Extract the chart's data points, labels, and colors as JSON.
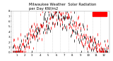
{
  "title": "Milwaukee Weather  Solar Radiation\nper Day KW/m2",
  "ylim": [
    0,
    8
  ],
  "background_color": "#ffffff",
  "grid_color": "#cccccc",
  "dot_color_primary": "#ff0000",
  "dot_color_secondary": "#000000",
  "legend_color": "#ff0000",
  "num_points": 365,
  "title_fontsize": 3.8,
  "tick_fontsize": 2.8,
  "month_starts": [
    0,
    31,
    59,
    90,
    120,
    151,
    181,
    212,
    243,
    273,
    304,
    334
  ],
  "month_centers": [
    15,
    45,
    74,
    105,
    135,
    166,
    196,
    227,
    258,
    288,
    319,
    349
  ],
  "month_labels": [
    "1",
    "2",
    "3",
    "4",
    "5",
    "6",
    "7",
    "8",
    "9",
    "10",
    "11",
    "12"
  ],
  "ytick_labels": [
    "0",
    "1",
    "2",
    "3",
    "4",
    "5",
    "6",
    "7",
    "8"
  ],
  "ytick_vals": [
    0,
    1,
    2,
    3,
    4,
    5,
    6,
    7,
    8
  ]
}
